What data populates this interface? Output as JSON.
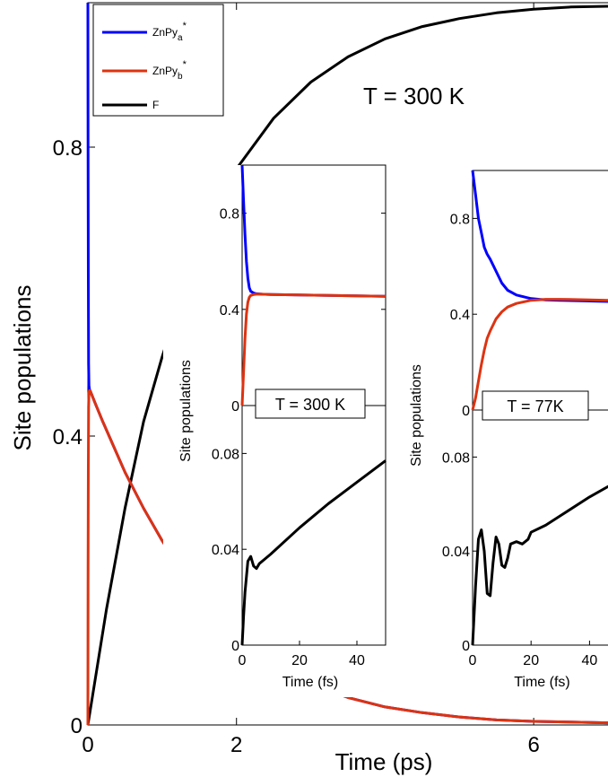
{
  "chart_data": [
    {
      "type": "line",
      "xlabel": "Time (ps)",
      "ylabel": "Site populations",
      "annotation": "T = 300 K",
      "xlim": [
        0,
        7
      ],
      "ylim": [
        0,
        1
      ],
      "x_ticks": [
        "0",
        "2",
        "6"
      ],
      "y_ticks": [
        "0",
        "0.4",
        "0.8"
      ],
      "legend": {
        "position": "top-left",
        "entries": [
          {
            "base": "ZnPy",
            "sub": "a",
            "sup": "*"
          },
          {
            "base": "ZnPy",
            "sub": "b",
            "sup": "*"
          },
          {
            "base": "F",
            "sub": "",
            "sup": ""
          }
        ]
      },
      "series": [
        {
          "name": "ZnPy_a*",
          "color": "#0000ff",
          "x": [
            0,
            0.003,
            0.006,
            0.01,
            0.015,
            0.02,
            0.03,
            0.05,
            0.1,
            0.2,
            0.35,
            0.5,
            0.75,
            1.0,
            1.25,
            1.5,
            1.75,
            2.0,
            2.5,
            3.0,
            3.5,
            4.0,
            4.5,
            5.0,
            5.5,
            6.0,
            6.5,
            7.0
          ],
          "y": [
            1.0,
            0.8,
            0.62,
            0.5,
            0.47,
            0.465,
            0.463,
            0.458,
            0.445,
            0.42,
            0.385,
            0.35,
            0.3,
            0.255,
            0.215,
            0.18,
            0.15,
            0.125,
            0.085,
            0.057,
            0.038,
            0.025,
            0.017,
            0.011,
            0.007,
            0.005,
            0.004,
            0.003
          ]
        },
        {
          "name": "ZnPy_b*",
          "color": "#dd3311",
          "x": [
            0,
            0.003,
            0.006,
            0.01,
            0.015,
            0.02,
            0.03,
            0.05,
            0.1,
            0.2,
            0.35,
            0.5,
            0.75,
            1.0,
            1.25,
            1.5,
            1.75,
            2.0,
            2.5,
            3.0,
            3.5,
            4.0,
            4.5,
            5.0,
            5.5,
            6.0,
            6.5,
            7.0
          ],
          "y": [
            0.0,
            0.2,
            0.36,
            0.44,
            0.46,
            0.463,
            0.463,
            0.458,
            0.445,
            0.42,
            0.385,
            0.35,
            0.3,
            0.255,
            0.215,
            0.18,
            0.15,
            0.125,
            0.085,
            0.057,
            0.038,
            0.025,
            0.017,
            0.011,
            0.007,
            0.005,
            0.004,
            0.003
          ]
        },
        {
          "name": "F",
          "color": "#000000",
          "x": [
            0,
            0.25,
            0.5,
            0.75,
            1.0,
            1.25,
            1.5,
            1.75,
            2.0,
            2.5,
            3.0,
            3.5,
            4.0,
            4.5,
            5.0,
            5.5,
            6.0,
            6.5,
            7.0
          ],
          "y": [
            0.0,
            0.16,
            0.3,
            0.42,
            0.51,
            0.59,
            0.66,
            0.72,
            0.77,
            0.84,
            0.89,
            0.925,
            0.95,
            0.967,
            0.978,
            0.986,
            0.991,
            0.994,
            0.995
          ]
        }
      ]
    },
    {
      "type": "line",
      "label": "T = 300 K",
      "xlabel": "Time (fs)",
      "ylabel": "Site populations",
      "xlim": [
        0,
        50
      ],
      "top_ylim": [
        0,
        1
      ],
      "bottom_ylim": [
        0,
        0.1
      ],
      "x_ticks": [
        "0",
        "20",
        "40"
      ],
      "top_y_ticks": [
        "0",
        "0.4",
        "0.8"
      ],
      "bottom_y_ticks": [
        "0",
        "0.04",
        "0.08"
      ],
      "series": [
        {
          "name": "ZnPy_a*",
          "color": "#0000ff",
          "panel": "top",
          "x": [
            0,
            0.5,
            1,
            1.5,
            2,
            2.5,
            3,
            4,
            5,
            7,
            10,
            20,
            30,
            40,
            50
          ],
          "y": [
            1.0,
            0.85,
            0.71,
            0.6,
            0.53,
            0.49,
            0.475,
            0.468,
            0.465,
            0.463,
            0.462,
            0.46,
            0.458,
            0.456,
            0.454
          ]
        },
        {
          "name": "ZnPy_b*",
          "color": "#dd3311",
          "panel": "top",
          "x": [
            0,
            0.5,
            1,
            1.5,
            2,
            2.5,
            3,
            4,
            5,
            7,
            10,
            20,
            30,
            40,
            50
          ],
          "y": [
            0.0,
            0.14,
            0.28,
            0.38,
            0.43,
            0.45,
            0.458,
            0.462,
            0.463,
            0.463,
            0.462,
            0.46,
            0.458,
            0.456,
            0.454
          ]
        },
        {
          "name": "F",
          "color": "#000000",
          "panel": "bottom",
          "x": [
            0,
            0.5,
            1,
            2,
            3,
            4,
            5,
            6,
            8,
            10,
            20,
            30,
            40,
            50
          ],
          "y": [
            0.0,
            0.012,
            0.022,
            0.035,
            0.037,
            0.033,
            0.032,
            0.034,
            0.036,
            0.038,
            0.049,
            0.059,
            0.068,
            0.077
          ]
        }
      ]
    },
    {
      "type": "line",
      "label": "T = 77K",
      "xlabel": "Time (fs)",
      "ylabel": "Site populations",
      "xlim": [
        0,
        50
      ],
      "top_ylim": [
        0,
        1
      ],
      "bottom_ylim": [
        0,
        0.1
      ],
      "x_ticks": [
        "0",
        "20",
        "40"
      ],
      "top_y_ticks": [
        "0",
        "0.4",
        "0.8"
      ],
      "bottom_y_ticks": [
        "0",
        "0.04",
        "0.08"
      ],
      "series": [
        {
          "name": "ZnPy_a*",
          "color": "#0000ff",
          "panel": "top",
          "x": [
            0,
            1,
            2,
            3,
            4,
            5,
            6,
            8,
            10,
            12,
            15,
            20,
            25,
            30,
            40,
            50
          ],
          "y": [
            1.0,
            0.9,
            0.8,
            0.74,
            0.68,
            0.65,
            0.63,
            0.58,
            0.53,
            0.5,
            0.48,
            0.465,
            0.46,
            0.458,
            0.455,
            0.452
          ]
        },
        {
          "name": "ZnPy_b*",
          "color": "#dd3311",
          "panel": "top",
          "x": [
            0,
            1,
            2,
            3,
            4,
            5,
            6,
            8,
            10,
            12,
            15,
            20,
            25,
            30,
            40,
            50
          ],
          "y": [
            0.0,
            0.05,
            0.12,
            0.19,
            0.25,
            0.3,
            0.33,
            0.38,
            0.41,
            0.43,
            0.445,
            0.458,
            0.462,
            0.462,
            0.46,
            0.457
          ]
        },
        {
          "name": "F",
          "color": "#000000",
          "panel": "bottom",
          "x": [
            0,
            1,
            2,
            3,
            4,
            5,
            6,
            7,
            8,
            9,
            10,
            11,
            12,
            13,
            15,
            17,
            19,
            20,
            25,
            30,
            40,
            50
          ],
          "y": [
            0.0,
            0.025,
            0.045,
            0.049,
            0.04,
            0.022,
            0.021,
            0.035,
            0.046,
            0.043,
            0.034,
            0.033,
            0.037,
            0.043,
            0.044,
            0.043,
            0.045,
            0.048,
            0.051,
            0.055,
            0.063,
            0.07
          ]
        }
      ]
    }
  ]
}
